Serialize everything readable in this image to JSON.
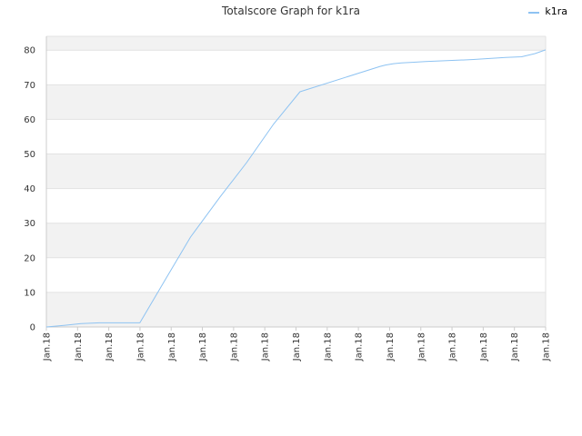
{
  "colors": {
    "series": "#8ec3f2",
    "band": "#f2f2f2",
    "grid": "#e2e2e2",
    "axis": "#cccccc"
  },
  "chart_data": {
    "type": "line",
    "title": "Totalscore Graph for k1ra",
    "xlabel": "",
    "ylabel": "",
    "ylim": [
      0,
      84
    ],
    "y_ticks": [
      0,
      10,
      20,
      30,
      40,
      50,
      60,
      70,
      80
    ],
    "x_ticks": [
      "Jan.18",
      "Jan.18",
      "Jan.18",
      "Jan.18",
      "Jan.18",
      "Jan.18",
      "Jan.18",
      "Jan.18",
      "Jan.18",
      "Jan.18",
      "Jan.18",
      "Jan.18",
      "Jan.18",
      "Jan.18",
      "Jan.18",
      "Jan.18",
      "Jan.18"
    ],
    "grid": true,
    "legend_position": "top-right",
    "series": [
      {
        "name": "k1ra",
        "color": "#8ec3f2",
        "points": [
          [
            0,
            0.0
          ],
          [
            0.7,
            0.5
          ],
          [
            1.3,
            1.0
          ],
          [
            2.0,
            1.2
          ],
          [
            3.0,
            1.2
          ],
          [
            3.5,
            1.2
          ],
          [
            4.4,
            13.0
          ],
          [
            5.4,
            26.0
          ],
          [
            6.5,
            37.5
          ],
          [
            7.5,
            47.5
          ],
          [
            8.5,
            58.5
          ],
          [
            9.5,
            68.0
          ],
          [
            12.5,
            75.3
          ],
          [
            12.7,
            75.7
          ],
          [
            13.0,
            76.1
          ],
          [
            13.3,
            76.3
          ],
          [
            13.7,
            76.5
          ],
          [
            14.2,
            76.7
          ],
          [
            14.8,
            76.9
          ],
          [
            15.4,
            77.1
          ],
          [
            16.0,
            77.3
          ],
          [
            16.6,
            77.6
          ],
          [
            17.2,
            77.9
          ],
          [
            17.8,
            78.1
          ],
          [
            18.3,
            79.0
          ],
          [
            18.7,
            80.1
          ]
        ]
      }
    ],
    "x_range": [
      0,
      18.7
    ]
  }
}
